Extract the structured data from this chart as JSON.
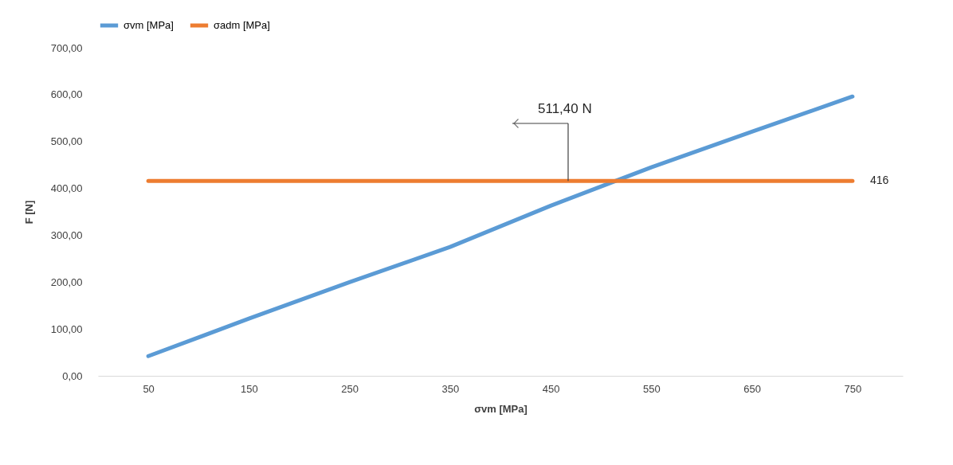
{
  "chart_data": {
    "type": "line",
    "xlabel": "σvm [MPa]",
    "ylabel": "F [N]",
    "categories": [
      "50",
      "150",
      "250",
      "350",
      "450",
      "550",
      "650",
      "750"
    ],
    "series": [
      {
        "name": "σvm [MPa]",
        "color": "#5b9bd5",
        "values": [
          42,
          122,
          200,
          275,
          363,
          445,
          521,
          596
        ]
      },
      {
        "name": "σadm [MPa]",
        "color": "#ed7d31",
        "values": [
          416,
          416,
          416,
          416,
          416,
          416,
          416,
          416
        ],
        "value_labels": [
          null,
          null,
          null,
          null,
          null,
          null,
          null,
          "416"
        ]
      }
    ],
    "ylim": [
      0,
      700
    ],
    "yticks": [
      {
        "value": 0,
        "label": "0,00"
      },
      {
        "value": 100,
        "label": "100,00"
      },
      {
        "value": 200,
        "label": "200,00"
      },
      {
        "value": 300,
        "label": "300,00"
      },
      {
        "value": 400,
        "label": "400,00"
      },
      {
        "value": 500,
        "label": "500,00"
      },
      {
        "value": 600,
        "label": "600,00"
      },
      {
        "value": 700,
        "label": "700,00"
      }
    ],
    "annotations": [
      {
        "text": "511,40 N",
        "y": 416
      }
    ],
    "legend": "top",
    "grid": false,
    "marker": "none",
    "line_style": "solid"
  }
}
